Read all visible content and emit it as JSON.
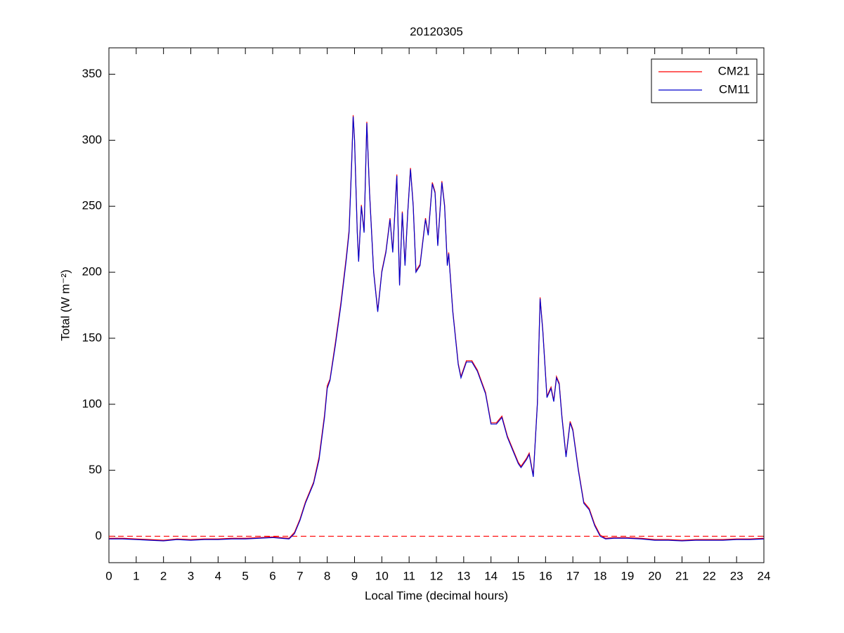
{
  "chart_data": {
    "type": "line",
    "title": "20120305",
    "xlabel": "Local Time (decimal hours)",
    "ylabel": "Total (W m⁻²)",
    "x": [
      0,
      0.5,
      1,
      1.5,
      2,
      2.5,
      3,
      3.5,
      4,
      4.5,
      5,
      5.5,
      6,
      6.3,
      6.6,
      6.8,
      7,
      7.2,
      7.5,
      7.7,
      7.9,
      8,
      8.1,
      8.3,
      8.5,
      8.7,
      8.8,
      8.9,
      8.95,
      9,
      9.1,
      9.15,
      9.25,
      9.35,
      9.45,
      9.55,
      9.7,
      9.85,
      10,
      10.15,
      10.3,
      10.4,
      10.55,
      10.65,
      10.75,
      10.85,
      10.95,
      11.05,
      11.15,
      11.25,
      11.4,
      11.6,
      11.7,
      11.85,
      11.95,
      12.05,
      12.2,
      12.3,
      12.4,
      12.45,
      12.6,
      12.8,
      12.9,
      13.1,
      13.3,
      13.5,
      13.8,
      14,
      14.2,
      14.4,
      14.6,
      14.8,
      15,
      15.1,
      15.3,
      15.4,
      15.55,
      15.7,
      15.8,
      15.9,
      16.05,
      16.2,
      16.3,
      16.4,
      16.5,
      16.6,
      16.75,
      16.9,
      17,
      17.2,
      17.4,
      17.6,
      17.8,
      18,
      18.2,
      18.5,
      19,
      19.5,
      20,
      20.5,
      21,
      21.5,
      22,
      22.5,
      23,
      23.5,
      24
    ],
    "series": [
      {
        "name": "CM21",
        "color": "#ff0000",
        "values": [
          -1.5,
          -1.5,
          -2,
          -2.5,
          -3,
          -2,
          -2.5,
          -2,
          -2,
          -1.5,
          -1.5,
          -1,
          -0.5,
          -1,
          -1.5,
          3,
          13,
          26,
          41,
          60,
          92,
          114,
          119,
          147,
          177,
          212,
          232,
          287,
          319,
          301,
          231,
          209,
          251,
          231,
          314,
          261,
          201,
          171,
          201,
          216,
          241,
          216,
          274,
          191,
          246,
          206,
          246,
          279,
          251,
          201,
          206,
          241,
          229,
          268,
          261,
          221,
          269,
          251,
          206,
          215,
          171,
          131,
          121,
          133,
          133,
          126,
          109,
          86,
          86,
          91,
          76,
          66,
          56,
          53,
          59,
          63,
          46,
          101,
          181,
          156,
          106,
          113,
          103,
          121,
          116,
          91,
          61,
          87,
          81,
          51,
          26,
          21,
          9,
          1,
          -1.5,
          -1,
          -1,
          -1.5,
          -2.5,
          -2.5,
          -3,
          -2.5,
          -2.5,
          -2.5,
          -2,
          -2,
          -1.5
        ]
      },
      {
        "name": "CM11",
        "color": "#0000cc",
        "values": [
          -2,
          -2,
          -2.5,
          -3,
          -3.5,
          -2.5,
          -3,
          -2.5,
          -2.5,
          -2,
          -2,
          -1.5,
          -1,
          -1.5,
          -2,
          2,
          12,
          25,
          40,
          58,
          90,
          112,
          118,
          145,
          175,
          210,
          230,
          285,
          318,
          300,
          230,
          208,
          250,
          230,
          313,
          260,
          200,
          170,
          200,
          215,
          240,
          215,
          273,
          190,
          245,
          205,
          245,
          278,
          250,
          200,
          205,
          240,
          228,
          267,
          260,
          220,
          268,
          250,
          205,
          214,
          170,
          130,
          120,
          132,
          132,
          125,
          108,
          85,
          85,
          90,
          75,
          65,
          55,
          52,
          58,
          62,
          45,
          100,
          180,
          155,
          105,
          112,
          102,
          120,
          115,
          90,
          60,
          86,
          80,
          50,
          25,
          20,
          8,
          0,
          -2,
          -1.5,
          -1.5,
          -2,
          -3,
          -3,
          -3.5,
          -3,
          -3,
          -3,
          -2.5,
          -2.5,
          -2
        ]
      }
    ],
    "xlim": [
      0,
      24
    ],
    "xticks": [
      0,
      1,
      2,
      3,
      4,
      5,
      6,
      7,
      8,
      9,
      10,
      11,
      12,
      13,
      14,
      15,
      16,
      17,
      18,
      19,
      20,
      21,
      22,
      23,
      24
    ],
    "ylim": [
      -20,
      370
    ],
    "yticks": [
      0,
      50,
      100,
      150,
      200,
      250,
      300,
      350
    ],
    "hline": {
      "value": 0,
      "color": "#ff0000"
    },
    "legend": "upper right",
    "grid": false
  }
}
